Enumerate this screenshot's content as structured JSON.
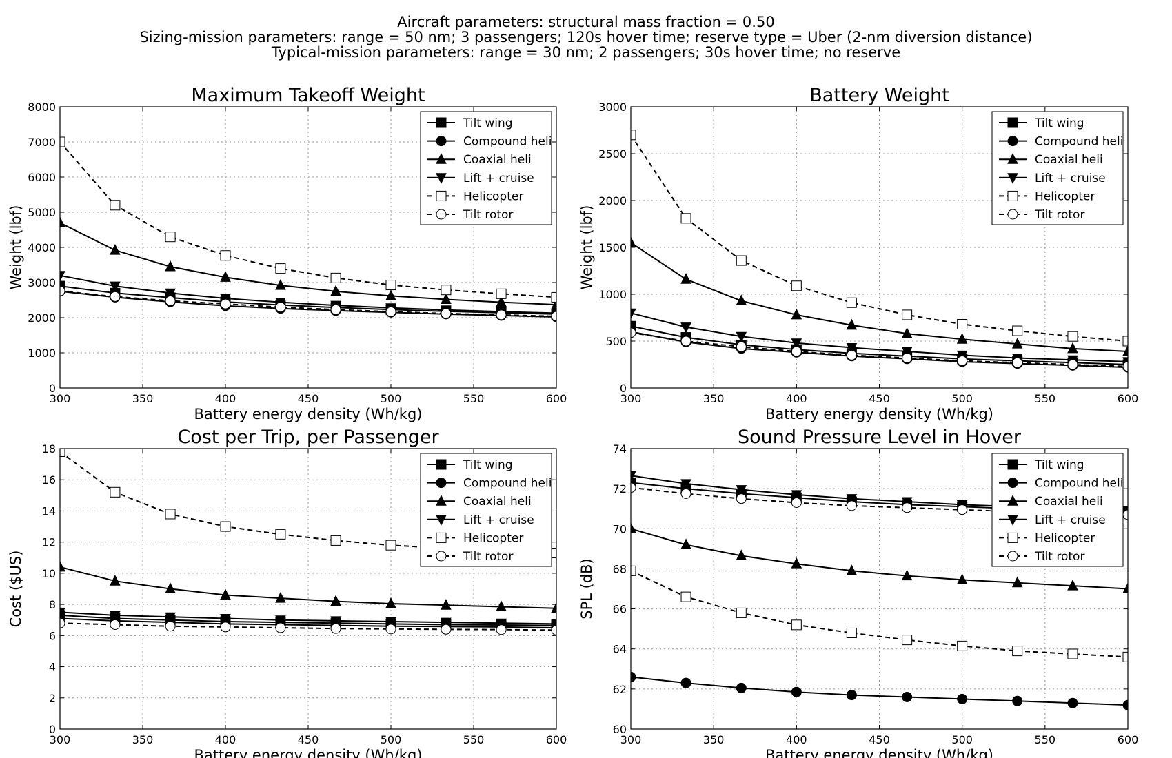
{
  "suptitle": [
    "Aircraft parameters: structural mass fraction = 0.50",
    "Sizing-mission parameters: range = 50 nm; 3 passengers; 120s hover time; reserve type = Uber (2-nm diversion distance)",
    "Typical-mission parameters: range = 30 nm; 2 passengers; 30s hover time; no reserve"
  ],
  "chart_data": [
    {
      "type": "line",
      "title": "Maximum Takeoff Weight",
      "xlabel": "Battery energy density (Wh/kg)",
      "ylabel": "Weight (lbf)",
      "xlim": [
        300,
        600
      ],
      "ylim": [
        0,
        8000
      ],
      "xticks": [
        300,
        350,
        400,
        450,
        500,
        550,
        600
      ],
      "yticks": [
        0,
        1000,
        2000,
        3000,
        4000,
        5000,
        6000,
        7000,
        8000
      ],
      "grid": true,
      "legend": "top-right",
      "x": [
        300,
        333.3,
        366.7,
        400,
        433.3,
        466.7,
        500,
        533.3,
        566.7,
        600
      ],
      "series": [
        {
          "name": "Tilt wing",
          "marker": "square",
          "dash": false,
          "values": [
            2900,
            2700,
            2570,
            2450,
            2360,
            2290,
            2230,
            2180,
            2140,
            2100
          ]
        },
        {
          "name": "Compound heli",
          "marker": "circle",
          "dash": false,
          "values": [
            2750,
            2580,
            2450,
            2340,
            2260,
            2200,
            2150,
            2100,
            2060,
            2020
          ]
        },
        {
          "name": "Coaxial heli",
          "marker": "triangle-up",
          "dash": false,
          "values": [
            4700,
            3920,
            3450,
            3150,
            2920,
            2750,
            2620,
            2520,
            2440,
            2370
          ]
        },
        {
          "name": "Lift + cruise",
          "marker": "triangle-down",
          "dash": false,
          "values": [
            3200,
            2900,
            2700,
            2550,
            2440,
            2350,
            2280,
            2220,
            2170,
            2130
          ]
        },
        {
          "name": "Helicopter",
          "marker": "square-open",
          "dash": true,
          "values": [
            7000,
            5200,
            4300,
            3770,
            3400,
            3130,
            2930,
            2790,
            2680,
            2580
          ]
        },
        {
          "name": "Tilt rotor",
          "marker": "circle-open",
          "dash": true,
          "values": [
            2760,
            2600,
            2480,
            2390,
            2300,
            2230,
            2170,
            2120,
            2080,
            2040
          ]
        }
      ]
    },
    {
      "type": "line",
      "title": "Battery Weight",
      "xlabel": "Battery energy density (Wh/kg)",
      "ylabel": "Weight (lbf)",
      "xlim": [
        300,
        600
      ],
      "ylim": [
        0,
        3000
      ],
      "xticks": [
        300,
        350,
        400,
        450,
        500,
        550,
        600
      ],
      "yticks": [
        0,
        500,
        1000,
        1500,
        2000,
        2500,
        3000
      ],
      "grid": true,
      "legend": "top-right",
      "x": [
        300,
        333.3,
        366.7,
        400,
        433.3,
        466.7,
        500,
        533.3,
        566.7,
        600
      ],
      "series": [
        {
          "name": "Tilt wing",
          "marker": "square",
          "dash": false,
          "values": [
            660,
            540,
            460,
            410,
            370,
            340,
            310,
            290,
            270,
            250
          ]
        },
        {
          "name": "Compound heli",
          "marker": "circle",
          "dash": false,
          "values": [
            600,
            490,
            420,
            380,
            340,
            310,
            280,
            260,
            240,
            220
          ]
        },
        {
          "name": "Coaxial heli",
          "marker": "triangle-up",
          "dash": false,
          "values": [
            1550,
            1160,
            930,
            780,
            670,
            580,
            520,
            470,
            420,
            390
          ]
        },
        {
          "name": "Lift + cruise",
          "marker": "triangle-down",
          "dash": false,
          "values": [
            800,
            650,
            550,
            480,
            430,
            390,
            350,
            320,
            300,
            280
          ]
        },
        {
          "name": "Helicopter",
          "marker": "square-open",
          "dash": true,
          "values": [
            2700,
            1810,
            1360,
            1090,
            910,
            780,
            680,
            610,
            550,
            500
          ]
        },
        {
          "name": "Tilt rotor",
          "marker": "circle-open",
          "dash": true,
          "values": [
            590,
            500,
            440,
            390,
            350,
            320,
            290,
            270,
            250,
            230
          ]
        }
      ]
    },
    {
      "type": "line",
      "title": "Cost per Trip, per Passenger",
      "xlabel": "Battery energy density (Wh/kg)",
      "ylabel": "Cost ($US)",
      "xlim": [
        300,
        600
      ],
      "ylim": [
        0,
        18
      ],
      "xticks": [
        300,
        350,
        400,
        450,
        500,
        550,
        600
      ],
      "yticks": [
        0,
        2,
        4,
        6,
        8,
        10,
        12,
        14,
        16,
        18
      ],
      "grid": true,
      "legend": "top-right",
      "x": [
        300,
        333.3,
        366.7,
        400,
        433.3,
        466.7,
        500,
        533.3,
        566.7,
        600
      ],
      "series": [
        {
          "name": "Tilt wing",
          "marker": "square",
          "dash": false,
          "values": [
            7.3,
            7.1,
            7.0,
            6.9,
            6.85,
            6.8,
            6.75,
            6.7,
            6.68,
            6.65
          ]
        },
        {
          "name": "Compound heli",
          "marker": "circle",
          "dash": false,
          "values": [
            7.1,
            6.95,
            6.85,
            6.75,
            6.7,
            6.65,
            6.6,
            6.58,
            6.55,
            6.5
          ]
        },
        {
          "name": "Coaxial heli",
          "marker": "triangle-up",
          "dash": false,
          "values": [
            10.4,
            9.5,
            9.0,
            8.6,
            8.4,
            8.2,
            8.05,
            7.95,
            7.85,
            7.75
          ]
        },
        {
          "name": "Lift + cruise",
          "marker": "triangle-down",
          "dash": false,
          "values": [
            7.5,
            7.3,
            7.2,
            7.1,
            7.0,
            6.95,
            6.9,
            6.85,
            6.8,
            6.75
          ]
        },
        {
          "name": "Helicopter",
          "marker": "square-open",
          "dash": true,
          "values": [
            17.8,
            15.2,
            13.8,
            13.0,
            12.5,
            12.1,
            11.8,
            11.6,
            11.45,
            11.3
          ]
        },
        {
          "name": "Tilt rotor",
          "marker": "circle-open",
          "dash": true,
          "values": [
            6.8,
            6.7,
            6.6,
            6.55,
            6.5,
            6.45,
            6.42,
            6.4,
            6.38,
            6.35
          ]
        }
      ]
    },
    {
      "type": "line",
      "title": "Sound Pressure Level in Hover",
      "xlabel": "Battery energy density (Wh/kg)",
      "ylabel": "SPL (dB)",
      "xlim": [
        300,
        600
      ],
      "ylim": [
        60,
        74
      ],
      "xticks": [
        300,
        350,
        400,
        450,
        500,
        550,
        600
      ],
      "yticks": [
        60,
        62,
        64,
        66,
        68,
        70,
        72,
        74
      ],
      "grid": true,
      "legend": "top-right",
      "x": [
        300,
        333.3,
        366.7,
        400,
        433.3,
        466.7,
        500,
        533.3,
        566.7,
        600
      ],
      "series": [
        {
          "name": "Tilt wing",
          "marker": "square",
          "dash": false,
          "values": [
            72.3,
            72.0,
            71.75,
            71.55,
            71.35,
            71.2,
            71.1,
            71.0,
            70.9,
            70.8
          ]
        },
        {
          "name": "Compound heli",
          "marker": "circle",
          "dash": false,
          "values": [
            62.6,
            62.3,
            62.05,
            61.85,
            61.7,
            61.6,
            61.5,
            61.4,
            61.3,
            61.2
          ]
        },
        {
          "name": "Coaxial heli",
          "marker": "triangle-up",
          "dash": false,
          "values": [
            70.0,
            69.2,
            68.65,
            68.25,
            67.9,
            67.65,
            67.45,
            67.3,
            67.15,
            67.0
          ]
        },
        {
          "name": "Lift + cruise",
          "marker": "triangle-down",
          "dash": false,
          "values": [
            72.65,
            72.25,
            71.95,
            71.7,
            71.5,
            71.35,
            71.2,
            71.1,
            71.0,
            70.9
          ]
        },
        {
          "name": "Helicopter",
          "marker": "square-open",
          "dash": true,
          "values": [
            67.9,
            66.6,
            65.8,
            65.2,
            64.8,
            64.45,
            64.15,
            63.9,
            63.75,
            63.6
          ]
        },
        {
          "name": "Tilt rotor",
          "marker": "circle-open",
          "dash": true,
          "values": [
            72.05,
            71.75,
            71.5,
            71.3,
            71.15,
            71.05,
            70.95,
            70.85,
            70.78,
            70.7
          ]
        }
      ]
    }
  ]
}
